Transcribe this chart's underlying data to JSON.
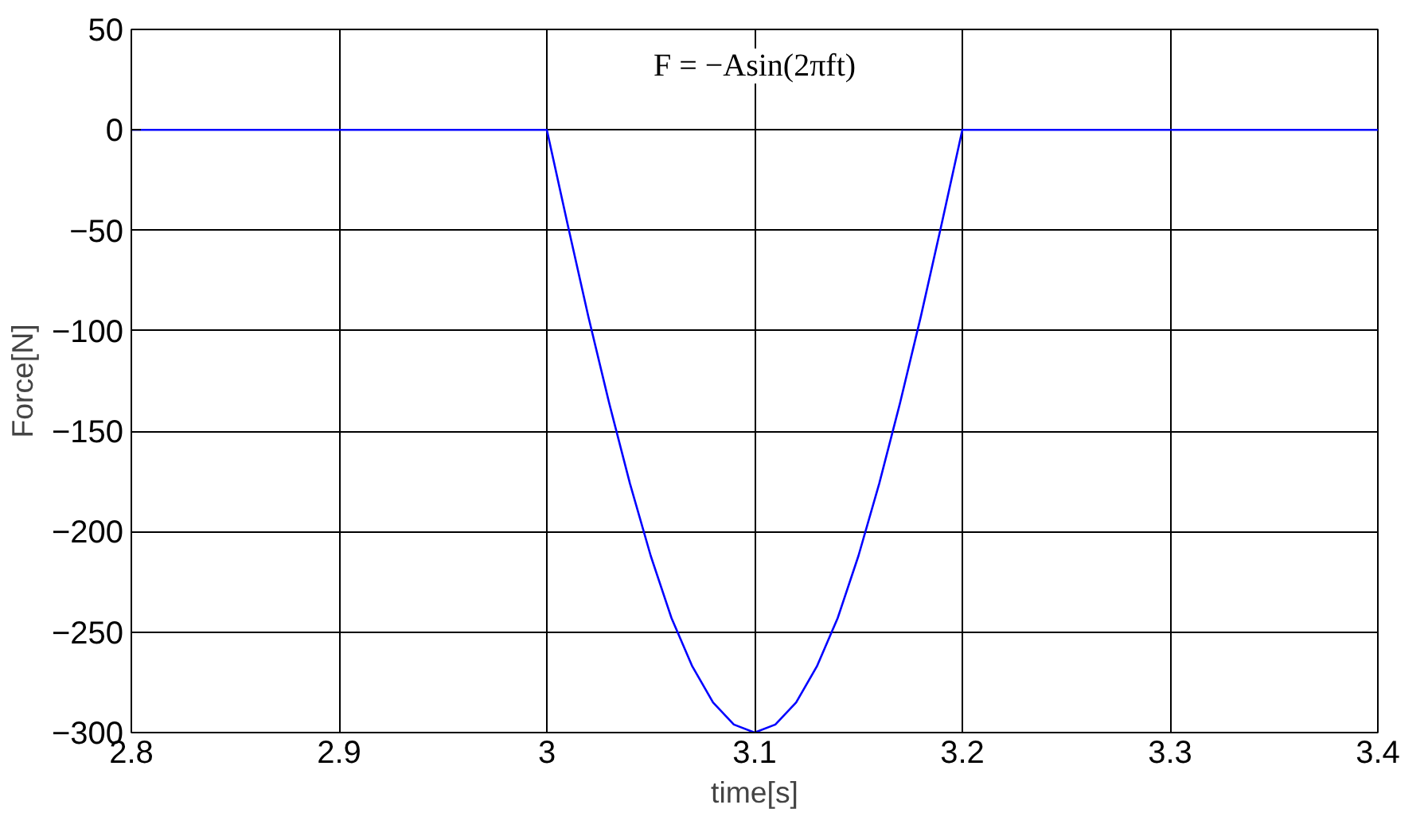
{
  "chart_data": {
    "type": "line",
    "xlabel": "time[s]",
    "ylabel": "Force[N]",
    "annotations": [
      "F = −Asin(2πft)"
    ],
    "x": [
      2.8,
      3.0,
      3.01,
      3.02,
      3.03,
      3.04,
      3.05,
      3.06,
      3.07,
      3.08,
      3.09,
      3.1,
      3.11,
      3.12,
      3.13,
      3.14,
      3.15,
      3.16,
      3.17,
      3.18,
      3.19,
      3.2,
      3.4
    ],
    "series": [
      {
        "color": "#0000ff",
        "values": [
          0,
          0,
          -47,
          -93,
          -136,
          -176,
          -212,
          -243,
          -267,
          -285,
          -296,
          -300,
          -296,
          -285,
          -267,
          -243,
          -212,
          -176,
          -136,
          -93,
          -47,
          0,
          0
        ]
      }
    ],
    "xlim": [
      2.8,
      3.4
    ],
    "ylim": [
      -300,
      50
    ],
    "xticks": [
      2.8,
      2.9,
      3,
      3.1,
      3.2,
      3.3,
      3.4
    ],
    "yticks": [
      -300,
      -250,
      -200,
      -150,
      -100,
      -50,
      0,
      50
    ],
    "grid": true,
    "marker": "none",
    "line_style": "solid"
  }
}
